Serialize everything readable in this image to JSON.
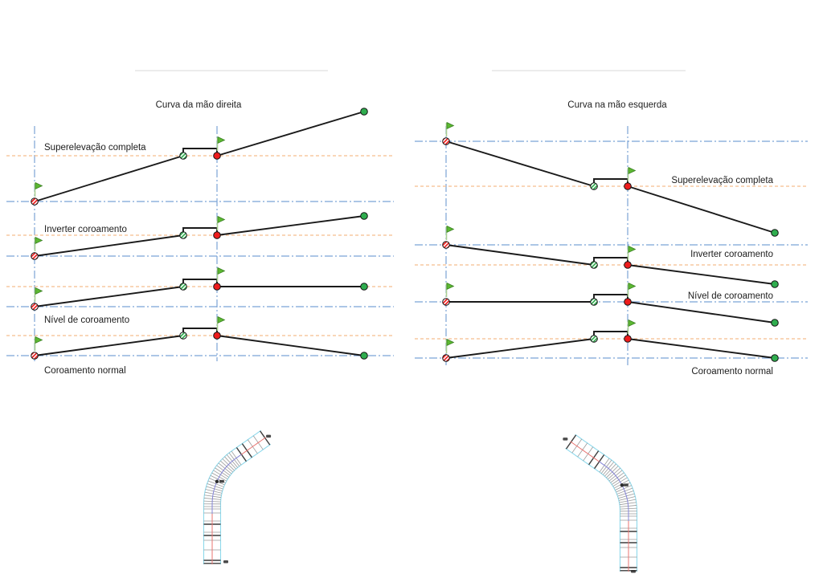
{
  "app": {
    "type": "superelevation-transition-diagram"
  },
  "panels": [
    {
      "title": "Curva da mão direita",
      "label_side": "left",
      "rows": [
        {
          "label": "Superelevação completa"
        },
        {
          "label": "Inverter coroamento"
        },
        {
          "label": "Nível de coroamento"
        },
        {
          "label": "Coroamento normal"
        }
      ]
    },
    {
      "title": "Curva na mão esquerda",
      "label_side": "right",
      "rows": [
        {
          "label": "Superelevação completa"
        },
        {
          "label": "Inverter coroamento"
        },
        {
          "label": "Nível de coroamento"
        },
        {
          "label": "Coroamento normal"
        }
      ]
    }
  ],
  "road_plans": [
    {
      "name": "right-hand-curve-plan"
    },
    {
      "name": "left-hand-curve-plan"
    }
  ],
  "markers": {
    "start": "begin-station-marker-icon",
    "kink": "transition-station-marker-icon",
    "critical": "critical-station-marker-icon",
    "end": "end-station-marker-icon",
    "flag": "green-flag-icon"
  },
  "colors": {
    "guide_centerline_blue": "#7ba3d6",
    "guide_superelevation_orange": "#f5bd8e",
    "profile_black": "#1a1a1a",
    "marker_green": "#2fad4e",
    "marker_red": "#ee1c1c",
    "flag_green": "#5cb832",
    "flag_edge": "#357a1f",
    "flag_pole": "#a9cf93",
    "divider_gray": "#d9d9d9",
    "road_edge_cyan": "#8ed9ec",
    "road_center_red": "#e97572",
    "road_center_blue": "#8585d8",
    "road_tick_gray": "#9a9a9a",
    "road_tick_dark": "#3d3d3d",
    "smudge_dark": "#2b2b2b",
    "text": "#1f1f1f"
  }
}
